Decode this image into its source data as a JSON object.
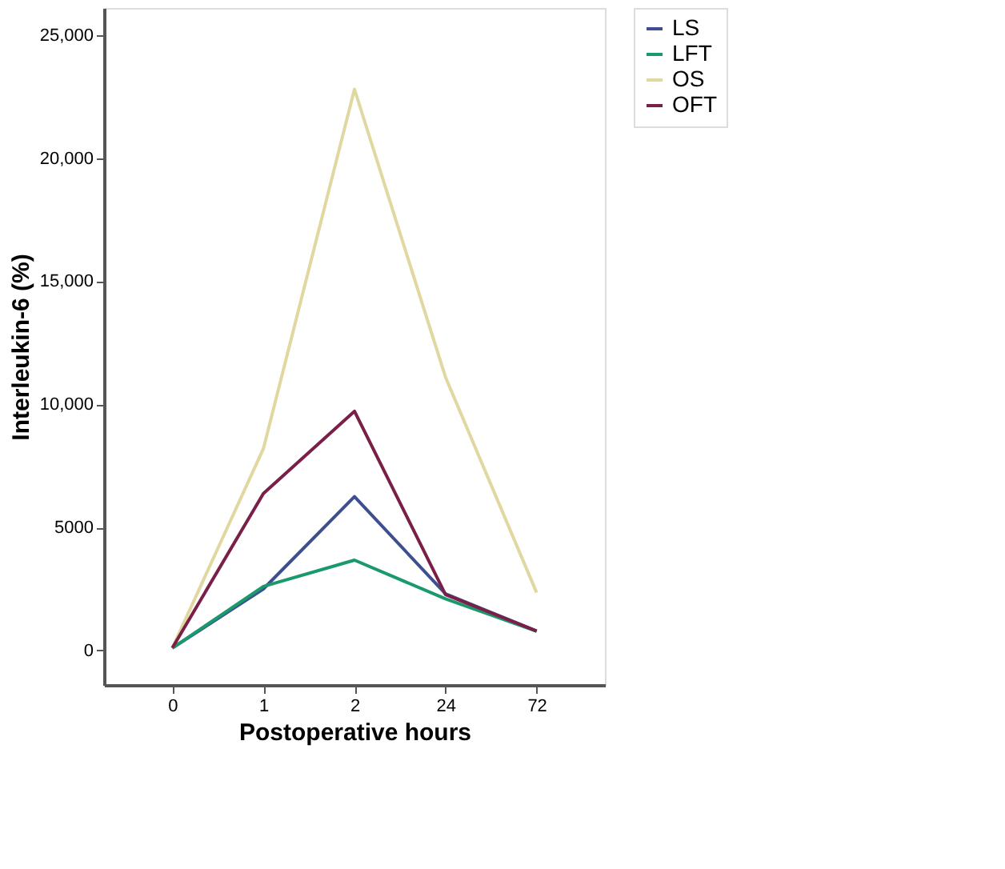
{
  "chart_data": {
    "type": "line",
    "xlabel": "Postoperative hours",
    "ylabel": "Interleukin-6 (%)",
    "categories": [
      "0",
      "1",
      "2",
      "24",
      "72"
    ],
    "series": [
      {
        "name": "LS",
        "color": "#3d4f8f",
        "values": [
          100,
          2500,
          6250,
          2300,
          790
        ]
      },
      {
        "name": "LFT",
        "color": "#1a9a6c",
        "values": [
          100,
          2600,
          3670,
          2100,
          780
        ]
      },
      {
        "name": "OS",
        "color": "#e0d8a0",
        "values": [
          100,
          8200,
          22800,
          11100,
          2350
        ]
      },
      {
        "name": "OFT",
        "color": "#7a2048",
        "values": [
          100,
          6380,
          9720,
          2270,
          790
        ]
      }
    ],
    "ylim": [
      -1400,
      26100
    ],
    "yticks": [
      0,
      {
        "value": 5000,
        "label": "5000"
      },
      {
        "value": 10000,
        "label": "10,000"
      },
      {
        "value": 15000,
        "label": "15,000"
      },
      {
        "value": 20000,
        "label": "20,000"
      },
      {
        "value": 25000,
        "label": "25,000"
      }
    ],
    "grid": false,
    "legend": "top right",
    "marker": "none",
    "line_style": "solid"
  }
}
